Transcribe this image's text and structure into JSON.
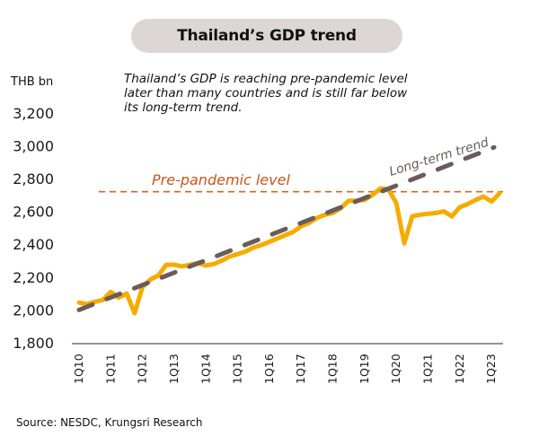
{
  "title": "Thailand’s GDP trend",
  "unit_label": "THB bn",
  "subtitle_lines": [
    "Thailand’s GDP is reaching pre-pandemic level",
    "later than many countries and is still far below",
    "its long-term trend."
  ],
  "source": "Source: NESDC, Krungsri Research",
  "colors": {
    "gdp_line": "#f5ac00",
    "trend_line": "#6b5b5b",
    "pre_pandemic": "#d9641c",
    "axis": "#555555",
    "title_bg": "#dcd6d6"
  },
  "chart_data": {
    "type": "line",
    "title": "Thailand’s GDP trend",
    "xlabel": "",
    "ylabel": "THB bn",
    "ylim": [
      1800,
      3200
    ],
    "yticks": [
      1800,
      2000,
      2200,
      2400,
      2600,
      2800,
      3000,
      3200
    ],
    "ytick_labels": [
      "1,800",
      "2,000",
      "2,200",
      "2,400",
      "2,600",
      "2,800",
      "3,000",
      "3,200"
    ],
    "grid": false,
    "x": [
      "1Q10",
      "2Q10",
      "3Q10",
      "4Q10",
      "1Q11",
      "2Q11",
      "3Q11",
      "4Q11",
      "1Q12",
      "2Q12",
      "3Q12",
      "4Q12",
      "1Q13",
      "2Q13",
      "3Q13",
      "4Q13",
      "1Q14",
      "2Q14",
      "3Q14",
      "4Q14",
      "1Q15",
      "2Q15",
      "3Q15",
      "4Q15",
      "1Q16",
      "2Q16",
      "3Q16",
      "4Q16",
      "1Q17",
      "2Q17",
      "3Q17",
      "4Q17",
      "1Q18",
      "2Q18",
      "3Q18",
      "4Q18",
      "1Q19",
      "2Q19",
      "3Q19",
      "4Q19",
      "1Q20",
      "2Q20",
      "3Q20",
      "4Q20",
      "1Q21",
      "2Q21",
      "3Q21",
      "4Q21",
      "1Q22",
      "2Q22",
      "3Q22",
      "4Q22",
      "1Q23",
      "2Q23"
    ],
    "xtick_labels": [
      "1Q10",
      "1Q11",
      "1Q12",
      "1Q13",
      "1Q14",
      "1Q15",
      "1Q16",
      "1Q17",
      "1Q18",
      "1Q19",
      "1Q20",
      "1Q21",
      "1Q22",
      "1Q23"
    ],
    "series": [
      {
        "name": "GDP",
        "style": "solid",
        "values": [
          2045,
          2035,
          2050,
          2060,
          2110,
          2075,
          2100,
          1980,
          2140,
          2185,
          2210,
          2275,
          2275,
          2265,
          2275,
          2285,
          2270,
          2280,
          2300,
          2325,
          2340,
          2355,
          2380,
          2395,
          2415,
          2435,
          2455,
          2475,
          2510,
          2530,
          2560,
          2580,
          2590,
          2620,
          2665,
          2665,
          2670,
          2700,
          2740,
          2735,
          2650,
          2405,
          2570,
          2580,
          2585,
          2590,
          2600,
          2570,
          2625,
          2645,
          2670,
          2690,
          2660,
          2710
        ]
      },
      {
        "name": "Long-term trend",
        "style": "dashed",
        "start": {
          "x": "1Q10",
          "value": 2000
        },
        "end": {
          "x": "2Q23",
          "value": 2990
        }
      },
      {
        "name": "Pre-pandemic level",
        "style": "dashed-thin",
        "value": 2720,
        "from_x": "4Q11",
        "to_x": "2Q23"
      }
    ],
    "annotations": [
      {
        "text": "Pre-pandemic level",
        "target": "Pre-pandemic level"
      },
      {
        "text": "Long-term trend",
        "target": "Long-term trend"
      }
    ],
    "legend": "none"
  }
}
